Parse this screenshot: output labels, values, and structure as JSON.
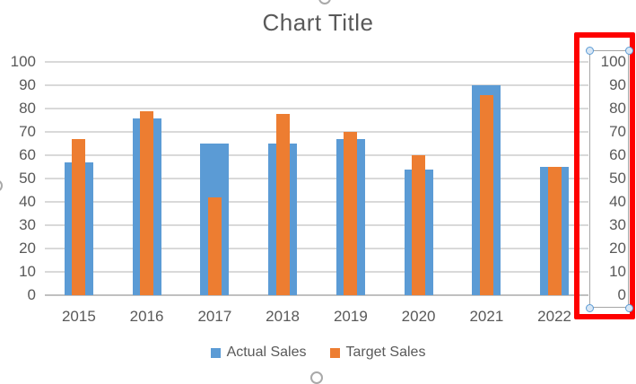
{
  "chart_data": {
    "type": "bar",
    "title": "Chart Title",
    "categories": [
      "2015",
      "2016",
      "2017",
      "2018",
      "2019",
      "2020",
      "2021",
      "2022"
    ],
    "series": [
      {
        "name": "Actual Sales",
        "color": "#5B9BD5",
        "axis": "primary",
        "values": [
          57,
          76,
          65,
          65,
          67,
          54,
          90,
          55
        ]
      },
      {
        "name": "Target Sales",
        "color": "#ED7D31",
        "axis": "secondary",
        "values": [
          67,
          79,
          42,
          78,
          70,
          60,
          86,
          55
        ]
      }
    ],
    "primary_axis": {
      "min": 0,
      "max": 100,
      "step": 10,
      "ticks": [
        "100",
        "90",
        "80",
        "70",
        "60",
        "50",
        "40",
        "30",
        "20",
        "10",
        "0"
      ]
    },
    "secondary_axis": {
      "min": 0,
      "max": 100,
      "step": 10,
      "ticks": [
        "100",
        "90",
        "80",
        "70",
        "60",
        "50",
        "40",
        "30",
        "20",
        "10",
        "0"
      ]
    },
    "legend_position": "bottom",
    "grid": true
  },
  "colors": {
    "actual_sales": "#5B9BD5",
    "target_sales": "#ED7D31",
    "gridline": "#D9D9D9",
    "axis_text": "#595959",
    "highlight_red": "#FE0000",
    "selection_handle": "#5B9BD5"
  },
  "annotations": {
    "secondary_axis_highlight": "red rectangle around secondary axis",
    "axis_selection_handles": 4,
    "chart_edge_handles": [
      "top",
      "left",
      "bottom"
    ]
  }
}
